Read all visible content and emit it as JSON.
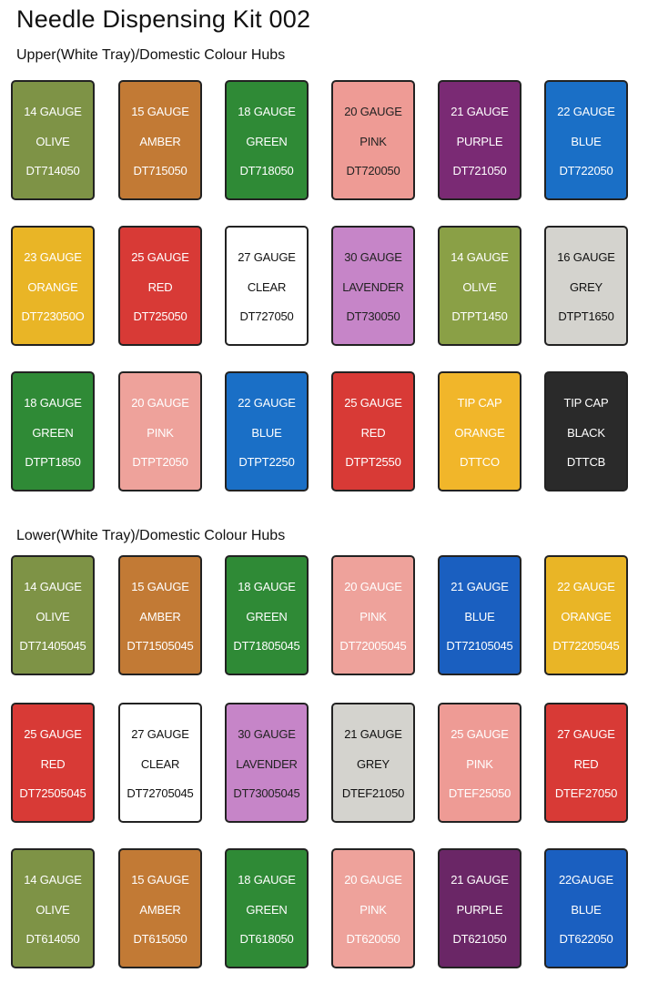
{
  "title": "Needle Dispensing Kit 002",
  "sections": [
    {
      "title": "Upper(White Tray)/Domestic Colour Hubs",
      "cards": [
        {
          "gauge": "14 GAUGE",
          "color_name": "OLIVE",
          "code": "DT714050",
          "bg": "#7e9346",
          "text": "#ffffff"
        },
        {
          "gauge": "15 GAUGE",
          "color_name": "AMBER",
          "code": "DT715050",
          "bg": "#c27a35",
          "text": "#ffffff"
        },
        {
          "gauge": "18 GAUGE",
          "color_name": "GREEN",
          "code": "DT718050",
          "bg": "#2f8a36",
          "text": "#ffffff"
        },
        {
          "gauge": "20 GAUGE",
          "color_name": "PINK",
          "code": "DT720050",
          "bg": "#ee9b95",
          "text": "#222222"
        },
        {
          "gauge": "21 GAUGE",
          "color_name": "PURPLE",
          "code": "DT721050",
          "bg": "#7a2a74",
          "text": "#ffffff"
        },
        {
          "gauge": "22 GAUGE",
          "color_name": "BLUE",
          "code": "DT722050",
          "bg": "#1a6fc6",
          "text": "#ffffff"
        },
        {
          "gauge": "23 GAUGE",
          "color_name": "ORANGE",
          "code": "DT723050O",
          "bg": "#e9b526",
          "text": "#ffffff"
        },
        {
          "gauge": "25 GAUGE",
          "color_name": "RED",
          "code": "DT725050",
          "bg": "#d83a36",
          "text": "#ffffff"
        },
        {
          "gauge": "27 GAUGE",
          "color_name": "CLEAR",
          "code": "DT727050",
          "bg": "#ffffff",
          "text": "#111111"
        },
        {
          "gauge": "30 GAUGE",
          "color_name": "LAVENDER",
          "code": "DT730050",
          "bg": "#c685c8",
          "text": "#222222"
        },
        {
          "gauge": "14 GAUGE",
          "color_name": "OLIVE",
          "code": "DTPT1450",
          "bg": "#8aa046",
          "text": "#ffffff"
        },
        {
          "gauge": "16 GAUGE",
          "color_name": "GREY",
          "code": "DTPT1650",
          "bg": "#d4d3ce",
          "text": "#111111"
        },
        {
          "gauge": "18 GAUGE",
          "color_name": "GREEN",
          "code": "DTPT1850",
          "bg": "#2f8a36",
          "text": "#ffffff"
        },
        {
          "gauge": "20 GAUGE",
          "color_name": "PINK",
          "code": "DTPT2050",
          "bg": "#eea29b",
          "text": "#ffffff"
        },
        {
          "gauge": "22 GAUGE",
          "color_name": "BLUE",
          "code": "DTPT2250",
          "bg": "#1a6fc6",
          "text": "#ffffff"
        },
        {
          "gauge": "25 GAUGE",
          "color_name": "RED",
          "code": "DTPT2550",
          "bg": "#d83a36",
          "text": "#ffffff"
        },
        {
          "gauge": "TIP CAP",
          "color_name": "ORANGE",
          "code": "DTTCO",
          "bg": "#f1b62a",
          "text": "#ffffff"
        },
        {
          "gauge": "TIP CAP",
          "color_name": "BLACK",
          "code": "DTTCB",
          "bg": "#2a2a2a",
          "text": "#ffffff"
        }
      ]
    },
    {
      "title": "Lower(White Tray)/Domestic Colour Hubs",
      "cards": [
        {
          "gauge": "14 GAUGE",
          "color_name": "OLIVE",
          "code": "DT71405045",
          "bg": "#7e9346",
          "text": "#ffffff"
        },
        {
          "gauge": "15 GAUGE",
          "color_name": "AMBER",
          "code": "DT71505045",
          "bg": "#c27a35",
          "text": "#ffffff"
        },
        {
          "gauge": "18 GAUGE",
          "color_name": "GREEN",
          "code": "DT71805045",
          "bg": "#2f8a36",
          "text": "#ffffff"
        },
        {
          "gauge": "20 GAUGE",
          "color_name": "PINK",
          "code": "DT72005045",
          "bg": "#eea29b",
          "text": "#ffffff"
        },
        {
          "gauge": "21 GAUGE",
          "color_name": "BLUE",
          "code": "DT72105045",
          "bg": "#1a5fc0",
          "text": "#ffffff"
        },
        {
          "gauge": "22 GAUGE",
          "color_name": "ORANGE",
          "code": "DT72205045",
          "bg": "#e9b526",
          "text": "#ffffff"
        },
        {
          "gauge": "25 GAUGE",
          "color_name": "RED",
          "code": "DT72505045",
          "bg": "#d83a36",
          "text": "#ffffff"
        },
        {
          "gauge": "27 GAUGE",
          "color_name": "CLEAR",
          "code": "DT72705045",
          "bg": "#ffffff",
          "text": "#111111"
        },
        {
          "gauge": "30 GAUGE",
          "color_name": "LAVENDER",
          "code": "DT73005045",
          "bg": "#c685c8",
          "text": "#222222"
        },
        {
          "gauge": "21 GAUGE",
          "color_name": "GREY",
          "code": "DTEF21050",
          "bg": "#d4d3ce",
          "text": "#111111"
        },
        {
          "gauge": "25 GAUGE",
          "color_name": "PINK",
          "code": "DTEF25050",
          "bg": "#ee9b95",
          "text": "#ffffff"
        },
        {
          "gauge": "27 GAUGE",
          "color_name": "RED",
          "code": "DTEF27050",
          "bg": "#d83a36",
          "text": "#ffffff"
        },
        {
          "gauge": "14 GAUGE",
          "color_name": "OLIVE",
          "code": "DT614050",
          "bg": "#7e9346",
          "text": "#ffffff"
        },
        {
          "gauge": "15 GAUGE",
          "color_name": "AMBER",
          "code": "DT615050",
          "bg": "#c27a35",
          "text": "#ffffff"
        },
        {
          "gauge": "18 GAUGE",
          "color_name": "GREEN",
          "code": "DT618050",
          "bg": "#2f8a36",
          "text": "#ffffff"
        },
        {
          "gauge": "20 GAUGE",
          "color_name": "PINK",
          "code": "DT620050",
          "bg": "#eea29b",
          "text": "#ffffff"
        },
        {
          "gauge": "21 GAUGE",
          "color_name": "PURPLE",
          "code": "DT621050",
          "bg": "#6a2666",
          "text": "#ffffff"
        },
        {
          "gauge": "22GAUGE",
          "color_name": "BLUE",
          "code": "DT622050",
          "bg": "#1a5fc0",
          "text": "#ffffff"
        }
      ]
    }
  ]
}
